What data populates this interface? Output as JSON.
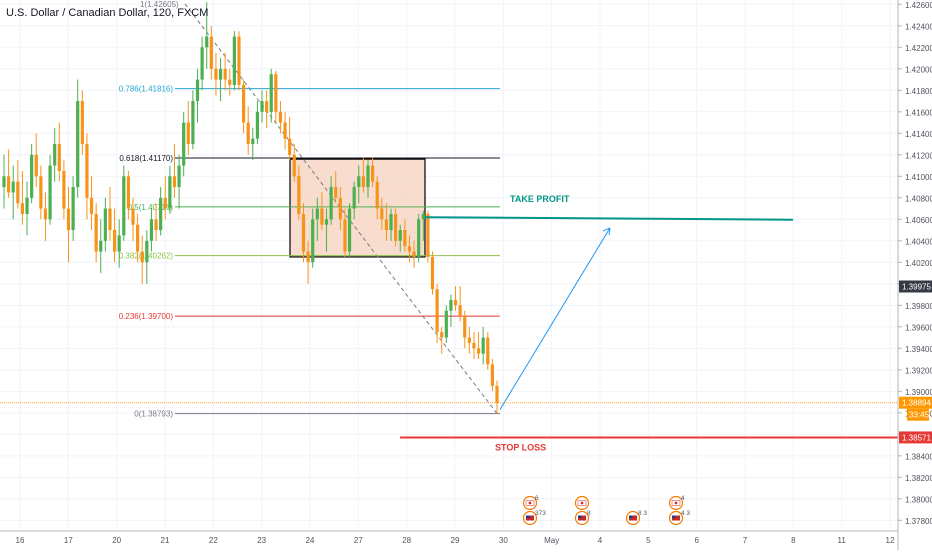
{
  "header": {
    "symbol_title": "U.S. Dollar / Canadian Dollar, 120, FXCM"
  },
  "colors": {
    "up": "#4caf50",
    "down": "#f7931a",
    "grid": "#f0f3fa",
    "axis_text": "#50535e",
    "take_profit": "#009688",
    "stop_loss": "#e53935",
    "projection": "#2196f3",
    "box_fill": "#f5d1bd",
    "box_border": "#000000",
    "price_marker": "#ffa726"
  },
  "chart_data": {
    "type": "candlestick",
    "y_axis": {
      "range": [
        1.3771,
        1.4264
      ],
      "ticks": [
        "1.42600",
        "1.42400",
        "1.42200",
        "1.42000",
        "1.41800",
        "1.41600",
        "1.41400",
        "1.41200",
        "1.41000",
        "1.40800",
        "1.40600",
        "1.40400",
        "1.40200",
        "1.40000",
        "1.39800",
        "1.39600",
        "1.39400",
        "1.39200",
        "1.39000",
        "1.38800",
        "1.38600",
        "1.38400",
        "1.38200",
        "1.38000",
        "1.37800"
      ]
    },
    "x_axis": {
      "labels": [
        "16",
        "17",
        "20",
        "21",
        "22",
        "23",
        "24",
        "27",
        "28",
        "29",
        "30",
        "May",
        "4",
        "5",
        "6",
        "7",
        "8",
        "11",
        "12"
      ]
    },
    "fibonacci": {
      "levels": [
        {
          "label": "0.786(1.41816)",
          "price": 1.41816,
          "color": "#26a6d1"
        },
        {
          "label": "0.618(1.41170)",
          "price": 1.4117,
          "color": "#131722"
        },
        {
          "label": "0.5(1.40716)",
          "price": 1.40716,
          "color": "#4caf50"
        },
        {
          "label": "0.382(1.40262)",
          "price": 1.40262,
          "color": "#8bc34a"
        },
        {
          "label": "0.236(1.39700)",
          "price": 1.397,
          "color": "#e53935"
        },
        {
          "label": "0(1.38793)",
          "price": 1.38793,
          "color": "#787b86"
        }
      ],
      "top_label": "1(1.42605)",
      "top_price": 1.42605
    },
    "annotations": {
      "take_profit": {
        "label": "TAKE PROFIT",
        "price": 1.4061
      },
      "stop_loss": {
        "label": "STOP LOSS",
        "price": 1.38571
      },
      "consolidation_box": {
        "top": 1.4116,
        "bottom": 1.4025
      }
    },
    "price_labels": {
      "current_high": {
        "text": "1.39975",
        "price": 1.39975,
        "bg": "#363a45"
      },
      "last_price": {
        "text": "1.38894",
        "price": 1.38894,
        "bg": "#ff9800"
      },
      "countdown": {
        "text": "33:45",
        "bg": "#ff9800"
      },
      "stop_loss_price": {
        "text": "1.38571",
        "price": 1.38571,
        "bg": "#e53935"
      }
    },
    "events": [
      {
        "flag": "ca",
        "count": "6"
      },
      {
        "flag": "us",
        "count": "373"
      },
      {
        "flag": "ca",
        "count": ""
      },
      {
        "flag": "us",
        "count": "8"
      },
      {
        "flag": "us",
        "count": "8 3"
      },
      {
        "flag": "ca",
        "count": "4"
      },
      {
        "flag": "us",
        "count": "4 3"
      }
    ],
    "candles": [
      [
        1.409,
        1.412,
        1.407,
        1.41
      ],
      [
        1.41,
        1.4125,
        1.408,
        1.4085
      ],
      [
        1.4085,
        1.411,
        1.406,
        1.4095
      ],
      [
        1.4095,
        1.4115,
        1.407,
        1.4075
      ],
      [
        1.4075,
        1.4105,
        1.4055,
        1.4065
      ],
      [
        1.4065,
        1.4095,
        1.4045,
        1.408
      ],
      [
        1.408,
        1.413,
        1.4075,
        1.412
      ],
      [
        1.412,
        1.414,
        1.409,
        1.41
      ],
      [
        1.41,
        1.411,
        1.406,
        1.407
      ],
      [
        1.407,
        1.4085,
        1.404,
        1.406
      ],
      [
        1.406,
        1.412,
        1.4055,
        1.411
      ],
      [
        1.411,
        1.4145,
        1.4095,
        1.413
      ],
      [
        1.413,
        1.415,
        1.4095,
        1.4105
      ],
      [
        1.4105,
        1.4115,
        1.406,
        1.407
      ],
      [
        1.407,
        1.409,
        1.402,
        1.405
      ],
      [
        1.405,
        1.41,
        1.404,
        1.409
      ],
      [
        1.409,
        1.419,
        1.408,
        1.417
      ],
      [
        1.417,
        1.418,
        1.412,
        1.413
      ],
      [
        1.413,
        1.414,
        1.406,
        1.408
      ],
      [
        1.408,
        1.41,
        1.405,
        1.4065
      ],
      [
        1.4065,
        1.4075,
        1.402,
        1.403
      ],
      [
        1.403,
        1.406,
        1.401,
        1.404
      ],
      [
        1.404,
        1.408,
        1.403,
        1.407
      ],
      [
        1.407,
        1.409,
        1.404,
        1.405
      ],
      [
        1.405,
        1.407,
        1.402,
        1.403
      ],
      [
        1.403,
        1.406,
        1.4015,
        1.4045
      ],
      [
        1.4045,
        1.411,
        1.404,
        1.41
      ],
      [
        1.41,
        1.4105,
        1.406,
        1.407
      ],
      [
        1.407,
        1.408,
        1.404,
        1.4055
      ],
      [
        1.4055,
        1.4065,
        1.402,
        1.403
      ],
      [
        1.403,
        1.4045,
        1.4,
        1.402
      ],
      [
        1.402,
        1.405,
        1.4,
        1.404
      ],
      [
        1.404,
        1.407,
        1.403,
        1.406
      ],
      [
        1.406,
        1.4075,
        1.404,
        1.405
      ],
      [
        1.405,
        1.409,
        1.4045,
        1.408
      ],
      [
        1.408,
        1.41,
        1.406,
        1.407
      ],
      [
        1.407,
        1.411,
        1.4065,
        1.41
      ],
      [
        1.41,
        1.413,
        1.408,
        1.409
      ],
      [
        1.409,
        1.412,
        1.407,
        1.411
      ],
      [
        1.411,
        1.416,
        1.41,
        1.415
      ],
      [
        1.415,
        1.417,
        1.412,
        1.413
      ],
      [
        1.413,
        1.418,
        1.4125,
        1.417
      ],
      [
        1.417,
        1.42,
        1.415,
        1.419
      ],
      [
        1.419,
        1.423,
        1.418,
        1.422
      ],
      [
        1.422,
        1.4262,
        1.42,
        1.423
      ],
      [
        1.423,
        1.424,
        1.419,
        1.42
      ],
      [
        1.42,
        1.4215,
        1.4175,
        1.419
      ],
      [
        1.419,
        1.421,
        1.417,
        1.42
      ],
      [
        1.42,
        1.4215,
        1.418,
        1.419
      ],
      [
        1.419,
        1.42,
        1.4175,
        1.4185
      ],
      [
        1.4185,
        1.4235,
        1.418,
        1.423
      ],
      [
        1.423,
        1.4235,
        1.418,
        1.4185
      ],
      [
        1.4185,
        1.419,
        1.414,
        1.415
      ],
      [
        1.415,
        1.4165,
        1.412,
        1.413
      ],
      [
        1.413,
        1.4145,
        1.4115,
        1.4135
      ],
      [
        1.4135,
        1.417,
        1.413,
        1.416
      ],
      [
        1.416,
        1.418,
        1.415,
        1.417
      ],
      [
        1.417,
        1.418,
        1.4145,
        1.416
      ],
      [
        1.416,
        1.42,
        1.415,
        1.4195
      ],
      [
        1.4195,
        1.4198,
        1.415,
        1.416
      ],
      [
        1.416,
        1.417,
        1.414,
        1.415
      ],
      [
        1.415,
        1.416,
        1.4125,
        1.4135
      ],
      [
        1.4135,
        1.4155,
        1.4115,
        1.412
      ],
      [
        1.412,
        1.413,
        1.4095,
        1.41
      ],
      [
        1.41,
        1.411,
        1.406,
        1.4065
      ],
      [
        1.4065,
        1.4075,
        1.402,
        1.403
      ],
      [
        1.403,
        1.404,
        1.4,
        1.402
      ],
      [
        1.402,
        1.407,
        1.4015,
        1.406
      ],
      [
        1.406,
        1.408,
        1.404,
        1.407
      ],
      [
        1.407,
        1.4085,
        1.405,
        1.4055
      ],
      [
        1.4055,
        1.407,
        1.403,
        1.406
      ],
      [
        1.406,
        1.41,
        1.4055,
        1.409
      ],
      [
        1.409,
        1.4105,
        1.4075,
        1.408
      ],
      [
        1.408,
        1.409,
        1.405,
        1.406
      ],
      [
        1.406,
        1.407,
        1.4025,
        1.403
      ],
      [
        1.403,
        1.4075,
        1.4025,
        1.407
      ],
      [
        1.407,
        1.4095,
        1.406,
        1.409
      ],
      [
        1.409,
        1.411,
        1.4075,
        1.41
      ],
      [
        1.41,
        1.4118,
        1.4085,
        1.409
      ],
      [
        1.409,
        1.4115,
        1.408,
        1.411
      ],
      [
        1.411,
        1.4118,
        1.409,
        1.4095
      ],
      [
        1.4095,
        1.41,
        1.406,
        1.407
      ],
      [
        1.407,
        1.408,
        1.405,
        1.406
      ],
      [
        1.406,
        1.4075,
        1.404,
        1.405
      ],
      [
        1.405,
        1.407,
        1.404,
        1.4065
      ],
      [
        1.4065,
        1.407,
        1.4035,
        1.404
      ],
      [
        1.404,
        1.4055,
        1.403,
        1.405
      ],
      [
        1.405,
        1.406,
        1.403,
        1.4035
      ],
      [
        1.4035,
        1.4045,
        1.402,
        1.403
      ],
      [
        1.403,
        1.404,
        1.4015,
        1.4025
      ],
      [
        1.4025,
        1.4065,
        1.402,
        1.406
      ],
      [
        1.406,
        1.4068,
        1.404,
        1.4065
      ],
      [
        1.4065,
        1.4068,
        1.402,
        1.4025
      ],
      [
        1.4025,
        1.403,
        1.399,
        1.3995
      ],
      [
        1.3995,
        1.4,
        1.3945,
        1.3955
      ],
      [
        1.3955,
        1.396,
        1.3935,
        1.395
      ],
      [
        1.395,
        1.398,
        1.3945,
        1.3975
      ],
      [
        1.3975,
        1.399,
        1.396,
        1.3985
      ],
      [
        1.3985,
        1.3998,
        1.3975,
        1.398
      ],
      [
        1.398,
        1.3998,
        1.3965,
        1.397
      ],
      [
        1.397,
        1.3975,
        1.394,
        1.395
      ],
      [
        1.395,
        1.396,
        1.3935,
        1.3945
      ],
      [
        1.3945,
        1.3955,
        1.393,
        1.394
      ],
      [
        1.394,
        1.3955,
        1.393,
        1.3935
      ],
      [
        1.3935,
        1.396,
        1.3925,
        1.395
      ],
      [
        1.395,
        1.3955,
        1.392,
        1.3925
      ],
      [
        1.3925,
        1.393,
        1.39,
        1.3905
      ],
      [
        1.3905,
        1.391,
        1.3879,
        1.3889
      ]
    ]
  }
}
